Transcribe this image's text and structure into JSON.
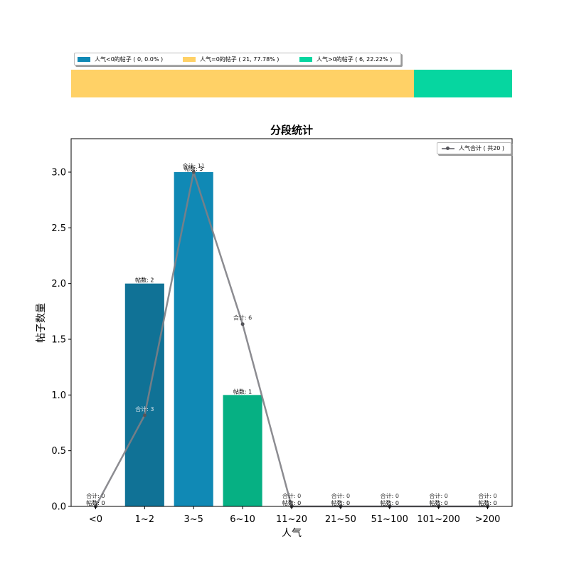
{
  "top_legend": {
    "items": [
      {
        "label": "人气<0的帖子 ( 0, 0.0% )",
        "color": "#1089b5"
      },
      {
        "label": "人气=0的帖子 ( 21, 77.78% )",
        "color": "#ffd166"
      },
      {
        "label": "人气>0的帖子 ( 6, 22.22% )",
        "color": "#06d6a0"
      }
    ]
  },
  "share_bar": {
    "segments": [
      {
        "name": "lt0",
        "count": 0,
        "color": "#1089b5"
      },
      {
        "name": "eq0",
        "count": 21,
        "color": "#ffd166"
      },
      {
        "name": "gt0",
        "count": 6,
        "color": "#06d6a0"
      }
    ]
  },
  "chart_data": {
    "type": "bar",
    "title": "分段统计",
    "xlabel": "人气",
    "ylabel": "帖子数量",
    "categories": [
      "<0",
      "1~2",
      "3~5",
      "6~10",
      "11~20",
      "21~50",
      "51~100",
      "101~200",
      ">200"
    ],
    "values": [
      0,
      2,
      3,
      1,
      0,
      0,
      0,
      0,
      0
    ],
    "bar_colors": [
      "#1089b5",
      "#107296",
      "#1089b5",
      "#06b083",
      "#1089b5",
      "#1089b5",
      "#1089b5",
      "#1089b5",
      "#1089b5"
    ],
    "bar_labels": [
      "帖数: 0",
      "帖数: 2",
      "帖数: 3",
      "帖数: 1",
      "帖数: 0",
      "帖数: 0",
      "帖数: 0",
      "帖数: 0",
      "帖数: 0"
    ],
    "sum_series": {
      "name": "人气合计 ( 共20 )",
      "values": [
        0,
        3,
        11,
        6,
        0,
        0,
        0,
        0,
        0
      ],
      "labels": [
        "合计: 0",
        "合计: 3",
        "合计: 11",
        "合计: 6",
        "合计: 0",
        "合计: 0",
        "合计: 0",
        "合计: 0",
        "合计: 0"
      ],
      "plotted_y": [
        0,
        0.818,
        3.0,
        1.636,
        0,
        0,
        0,
        0,
        0
      ],
      "color": "#7f7f85"
    },
    "ylim": [
      0,
      3.3
    ],
    "yticks": [
      "0.0",
      "0.5",
      "1.0",
      "1.5",
      "2.0",
      "2.5",
      "3.0"
    ],
    "grid": false,
    "legend_position": "top-right"
  }
}
